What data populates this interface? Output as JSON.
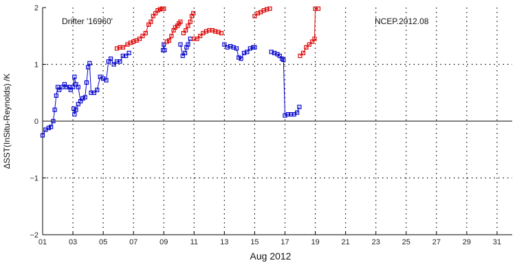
{
  "chart_data": {
    "type": "scatter",
    "title": "",
    "xlabel": "Aug 2012",
    "ylabel": "ΔSST(InSitu-Reynolds) /K",
    "xlim": [
      1,
      32
    ],
    "ylim": [
      -2,
      2
    ],
    "x_ticks": [
      1,
      3,
      5,
      7,
      9,
      11,
      13,
      15,
      17,
      19,
      21,
      23,
      25,
      27,
      29,
      31
    ],
    "x_tick_labels": [
      "01",
      "03",
      "05",
      "07",
      "09",
      "11",
      "13",
      "15",
      "17",
      "19",
      "21",
      "23",
      "25",
      "27",
      "29",
      "31"
    ],
    "y_ticks": [
      -2,
      -1,
      0,
      1,
      2
    ],
    "y_tick_labels": [
      "−2",
      "−1",
      "0",
      "1",
      "2"
    ],
    "grid": true,
    "annotations": [
      "Drifter '16960'",
      "NCEP.2012.08"
    ],
    "series": [
      {
        "color": "#0000cc",
        "marker": "square",
        "segments": [
          [
            [
              1.0,
              -0.25
            ],
            [
              1.2,
              -0.15
            ],
            [
              1.4,
              -0.12
            ],
            [
              1.55,
              -0.1
            ],
            [
              1.7,
              0.0
            ],
            [
              1.8,
              0.2
            ],
            [
              1.9,
              0.45
            ],
            [
              2.0,
              0.6
            ],
            [
              2.1,
              0.55
            ],
            [
              2.3,
              0.6
            ],
            [
              2.45,
              0.65
            ],
            [
              2.6,
              0.6
            ],
            [
              2.75,
              0.6
            ],
            [
              2.85,
              0.55
            ],
            [
              3.0,
              0.6
            ],
            [
              3.1,
              0.78
            ],
            [
              3.2,
              0.65
            ],
            [
              3.35,
              0.6
            ],
            [
              3.5,
              0.35
            ],
            [
              3.65,
              0.4
            ],
            [
              3.8,
              0.42
            ],
            [
              3.9,
              0.68
            ],
            [
              4.0,
              0.95
            ],
            [
              4.1,
              1.02
            ],
            [
              4.2,
              0.5
            ],
            [
              4.4,
              0.5
            ],
            [
              4.6,
              0.55
            ],
            [
              4.8,
              0.78
            ],
            [
              5.0,
              0.75
            ],
            [
              5.2,
              0.72
            ],
            [
              5.35,
              1.05
            ],
            [
              5.5,
              1.1
            ],
            [
              5.7,
              1.0
            ],
            [
              5.9,
              1.05
            ],
            [
              6.1,
              1.05
            ],
            [
              6.3,
              1.15
            ],
            [
              6.5,
              1.15
            ],
            [
              6.7,
              1.2
            ]
          ],
          [
            [
              3.05,
              0.22
            ],
            [
              3.1,
              0.12
            ],
            [
              3.2,
              0.2
            ],
            [
              3.35,
              0.3
            ]
          ],
          [
            [
              8.95,
              1.25
            ],
            [
              9.0,
              1.35
            ],
            [
              9.05,
              1.25
            ]
          ],
          [
            [
              10.1,
              1.35
            ],
            [
              10.25,
              1.15
            ],
            [
              10.4,
              1.2
            ],
            [
              10.5,
              1.3
            ],
            [
              10.6,
              1.35
            ],
            [
              10.75,
              1.45
            ]
          ],
          [
            [
              13.0,
              1.35
            ],
            [
              13.2,
              1.3
            ],
            [
              13.4,
              1.32
            ],
            [
              13.6,
              1.3
            ],
            [
              13.8,
              1.28
            ],
            [
              13.95,
              1.12
            ],
            [
              14.1,
              1.1
            ],
            [
              14.3,
              1.2
            ],
            [
              14.5,
              1.22
            ],
            [
              14.7,
              1.28
            ],
            [
              14.9,
              1.3
            ],
            [
              15.0,
              1.3
            ]
          ],
          [
            [
              16.1,
              1.22
            ],
            [
              16.3,
              1.2
            ],
            [
              16.5,
              1.18
            ],
            [
              16.65,
              1.15
            ],
            [
              16.8,
              1.1
            ],
            [
              16.9,
              1.08
            ],
            [
              17.0,
              0.1
            ],
            [
              17.2,
              0.12
            ],
            [
              17.4,
              0.12
            ],
            [
              17.6,
              0.12
            ],
            [
              17.8,
              0.15
            ],
            [
              17.95,
              0.25
            ]
          ]
        ]
      },
      {
        "color": "#dd0000",
        "marker": "square",
        "segments": [
          [
            [
              5.9,
              1.28
            ],
            [
              6.1,
              1.3
            ],
            [
              6.3,
              1.3
            ],
            [
              6.6,
              1.35
            ],
            [
              6.8,
              1.38
            ],
            [
              7.0,
              1.4
            ],
            [
              7.2,
              1.42
            ],
            [
              7.4,
              1.45
            ],
            [
              7.6,
              1.5
            ],
            [
              7.8,
              1.55
            ],
            [
              8.0,
              1.7
            ],
            [
              8.15,
              1.75
            ],
            [
              8.3,
              1.85
            ],
            [
              8.45,
              1.9
            ],
            [
              8.6,
              1.95
            ],
            [
              8.75,
              1.97
            ],
            [
              8.9,
              1.98
            ],
            [
              9.0,
              1.98
            ]
          ],
          [
            [
              9.2,
              1.4
            ],
            [
              9.35,
              1.42
            ],
            [
              9.5,
              1.5
            ],
            [
              9.65,
              1.6
            ],
            [
              9.75,
              1.65
            ],
            [
              9.9,
              1.68
            ],
            [
              10.0,
              1.72
            ],
            [
              10.1,
              1.75
            ]
          ],
          [
            [
              10.3,
              1.55
            ],
            [
              10.45,
              1.6
            ],
            [
              10.6,
              1.68
            ],
            [
              10.75,
              1.75
            ],
            [
              10.85,
              1.85
            ],
            [
              10.95,
              1.9
            ]
          ],
          [
            [
              11.0,
              1.45
            ],
            [
              11.2,
              1.45
            ],
            [
              11.4,
              1.5
            ],
            [
              11.6,
              1.55
            ],
            [
              11.8,
              1.58
            ],
            [
              12.0,
              1.6
            ],
            [
              12.2,
              1.6
            ],
            [
              12.4,
              1.58
            ],
            [
              12.6,
              1.57
            ],
            [
              12.8,
              1.55
            ]
          ],
          [
            [
              15.0,
              1.85
            ],
            [
              15.2,
              1.9
            ],
            [
              15.4,
              1.92
            ],
            [
              15.6,
              1.95
            ],
            [
              15.8,
              1.97
            ],
            [
              16.0,
              1.98
            ]
          ],
          [
            [
              18.0,
              1.15
            ],
            [
              18.2,
              1.2
            ],
            [
              18.4,
              1.3
            ],
            [
              18.6,
              1.35
            ],
            [
              18.8,
              1.4
            ],
            [
              18.95,
              1.45
            ],
            [
              19.0,
              1.98
            ],
            [
              19.2,
              1.98
            ]
          ]
        ]
      }
    ]
  }
}
